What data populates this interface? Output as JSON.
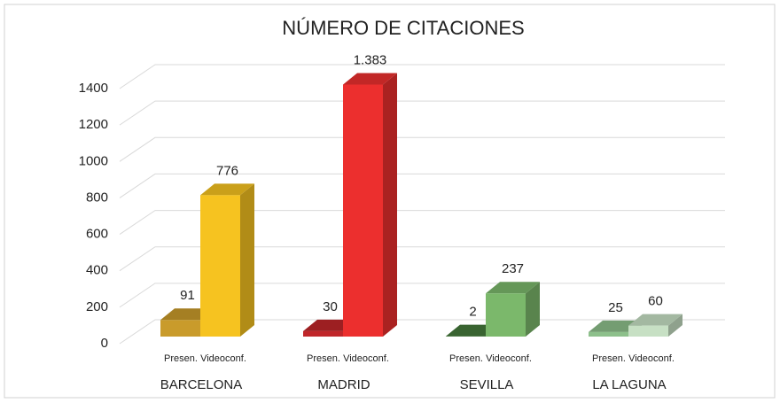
{
  "chart_data": {
    "type": "bar3d",
    "title": "NÚMERO DE CITACIONES",
    "categories": [
      "BARCELONA",
      "MADRID",
      "SEVILLA",
      "LA LAGUNA"
    ],
    "series": [
      {
        "name": "Presen.",
        "colors": [
          "#c99b2b",
          "#c0262a",
          "#467a3c",
          "#8dc08b"
        ],
        "values": [
          91,
          30,
          2,
          25
        ]
      },
      {
        "name": "Videoconf.",
        "colors": [
          "#f6c320",
          "#ec2f2e",
          "#7bb86b",
          "#c7e0c4"
        ],
        "values": [
          776,
          1383,
          237,
          60
        ],
        "value_labels": [
          "776",
          "1.383",
          "237",
          "60"
        ]
      }
    ],
    "ylim": [
      0,
      1400
    ],
    "yticks": [
      0,
      200,
      400,
      600,
      800,
      1000,
      1200,
      1400
    ],
    "grid": true
  }
}
